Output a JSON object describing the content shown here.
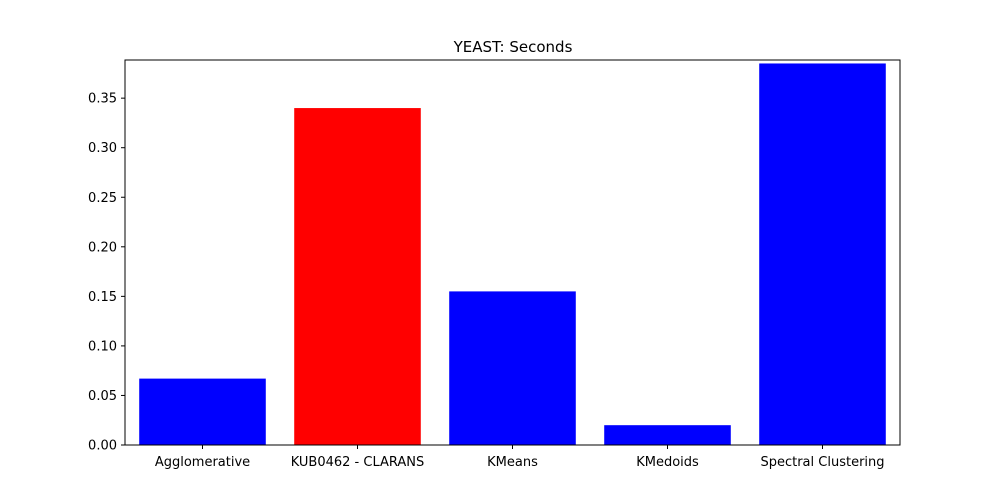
{
  "chart_data": {
    "type": "bar",
    "title": "YEAST: Seconds",
    "xlabel": "",
    "ylabel": "",
    "categories": [
      "Agglomerative",
      "KUB0462 - CLARANS",
      "KMeans",
      "KMedoids",
      "Spectral Clustering"
    ],
    "values": [
      0.067,
      0.34,
      0.155,
      0.02,
      0.385
    ],
    "bar_colors": [
      "#0000ff",
      "#ff0000",
      "#0000ff",
      "#0000ff",
      "#0000ff"
    ],
    "ylim": [
      0,
      0.3885
    ],
    "yticks": [
      0.0,
      0.05,
      0.1,
      0.15,
      0.2,
      0.25,
      0.3,
      0.35
    ],
    "ytick_labels": [
      "0.00",
      "0.05",
      "0.10",
      "0.15",
      "0.20",
      "0.25",
      "0.30",
      "0.35"
    ],
    "grid": false,
    "legend": "none"
  }
}
